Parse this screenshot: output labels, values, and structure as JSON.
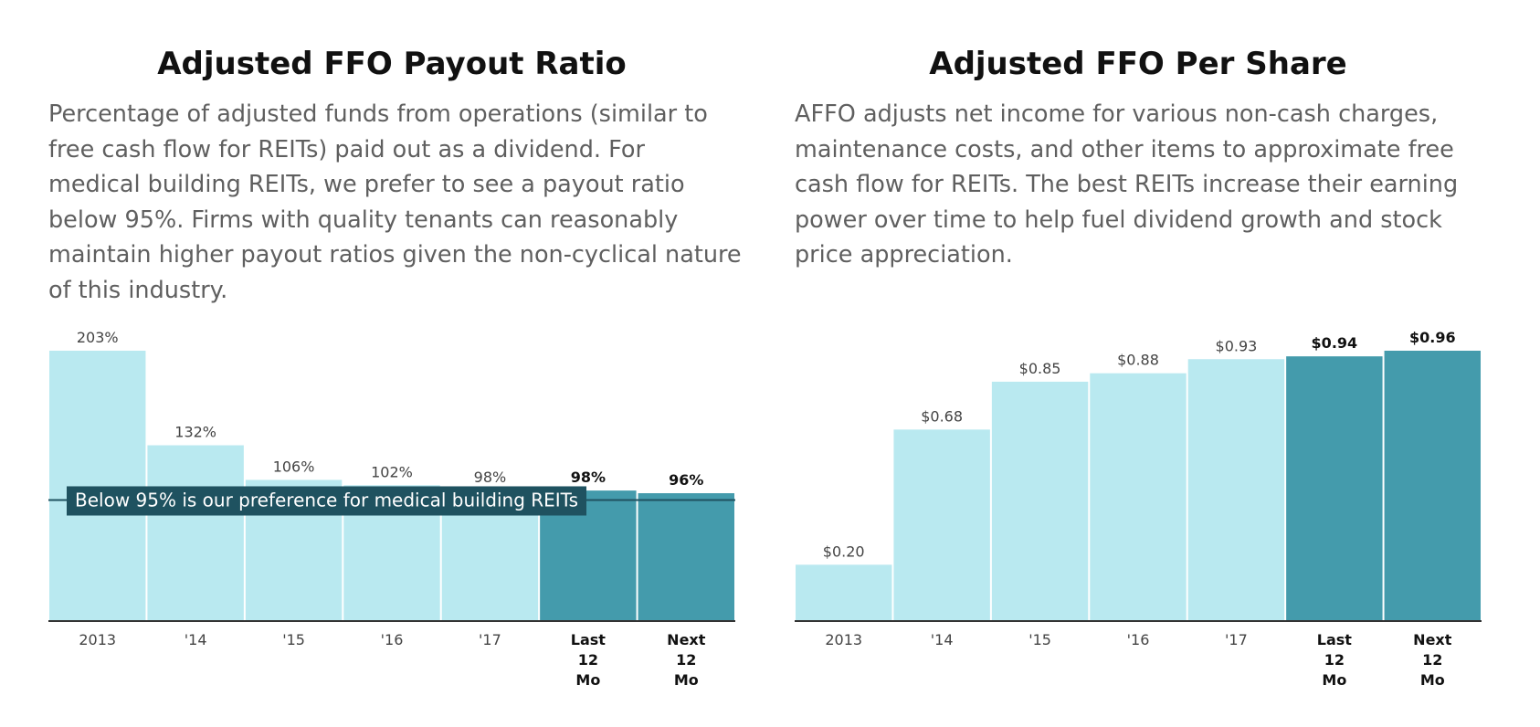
{
  "colors": {
    "bar_historical": "#b9e9f0",
    "bar_current": "#449bac",
    "label_box": "#1f5260",
    "axis": "#333333",
    "label_text": "#444444",
    "bold_text": "#111111"
  },
  "left": {
    "title": "Adjusted FFO Payout Ratio",
    "description": "Percentage of adjusted funds from operations (similar to free cash flow for REITs) paid out as a dividend. For medical building REITs, we prefer to see a payout ratio below 95%. Firms with quality tenants can reasonably maintain higher payout ratios given the non-cyclical nature of this industry.",
    "chart_data": {
      "type": "bar",
      "title": "Adjusted FFO Payout Ratio",
      "categories": [
        [
          "2013"
        ],
        [
          "'14"
        ],
        [
          "'15"
        ],
        [
          "'16"
        ],
        [
          "'17"
        ],
        [
          "Last",
          "12",
          "Mo"
        ],
        [
          "Next",
          "12",
          "Mo"
        ]
      ],
      "values": [
        203,
        132,
        106,
        102,
        98,
        98,
        96
      ],
      "value_labels": [
        "203%",
        "132%",
        "106%",
        "102%",
        "98%",
        "98%",
        "96%"
      ],
      "highlighted": [
        false,
        false,
        false,
        false,
        false,
        true,
        true
      ],
      "ylim": [
        0,
        203
      ],
      "reference_line": {
        "value": 95,
        "label": "Below 95% is our preference for medical building REITs"
      },
      "grid": false,
      "legend": "none"
    }
  },
  "right": {
    "title": "Adjusted FFO Per Share",
    "description": "AFFO adjusts net income for various non-cash charges, maintenance costs, and other items to approximate free cash flow for REITs. The best REITs increase their earning power over time to help fuel dividend growth and stock price appreciation.",
    "chart_data": {
      "type": "bar",
      "title": "Adjusted FFO Per Share",
      "categories": [
        [
          "2013"
        ],
        [
          "'14"
        ],
        [
          "'15"
        ],
        [
          "'16"
        ],
        [
          "'17"
        ],
        [
          "Last",
          "12",
          "Mo"
        ],
        [
          "Next",
          "12",
          "Mo"
        ]
      ],
      "values": [
        0.2,
        0.68,
        0.85,
        0.88,
        0.93,
        0.94,
        0.96
      ],
      "value_labels": [
        "$0.20",
        "$0.68",
        "$0.85",
        "$0.88",
        "$0.93",
        "$0.94",
        "$0.96"
      ],
      "highlighted": [
        false,
        false,
        false,
        false,
        false,
        true,
        true
      ],
      "ylim": [
        0,
        0.96
      ],
      "grid": false,
      "legend": "none"
    }
  }
}
